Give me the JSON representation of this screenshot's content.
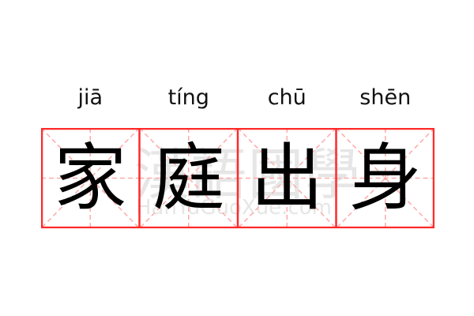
{
  "word": [
    {
      "pinyin": "jiā",
      "char": "家"
    },
    {
      "pinyin": "tíng",
      "char": "庭"
    },
    {
      "pinyin": "chū",
      "char": "出"
    },
    {
      "pinyin": "shēn",
      "char": "身"
    }
  ],
  "watermark": {
    "cn": "漢語國學",
    "en": "HanYuGuoXue.com"
  },
  "colors": {
    "grid_border": "#ff2a2a",
    "guide_lines": "#ffaaaa",
    "text": "#000000"
  }
}
